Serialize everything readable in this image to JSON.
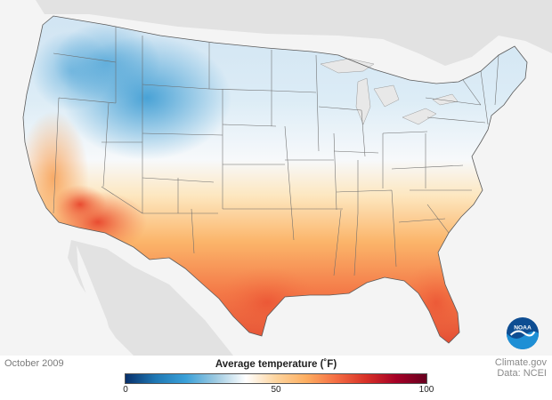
{
  "map": {
    "date": "October 2009",
    "legend": {
      "title": "Average temperature (˚F)",
      "min_label": "0",
      "mid_label": "50",
      "max_label": "100",
      "colors": [
        "#08306b",
        "#1f78b4",
        "#3aa0d8",
        "#9ecae1",
        "#ffffff",
        "#fdd49e",
        "#fdae61",
        "#f46d43",
        "#d73027",
        "#a50026",
        "#67001f"
      ]
    },
    "credit": {
      "line1": "Climate.gov",
      "line2": "Data: NCEI"
    },
    "logo_text": "NOAA"
  }
}
